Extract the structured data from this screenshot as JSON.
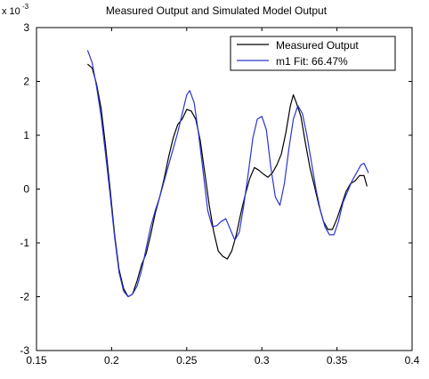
{
  "chart_data": {
    "type": "line",
    "title": "Measured Output and Simulated Model Output",
    "y_exponent_label": {
      "base": "x 10",
      "exponent": "-3"
    },
    "xlim": [
      0.15,
      0.4
    ],
    "ylim": [
      -3,
      3
    ],
    "x_ticks": [
      {
        "value": 0.15,
        "label": "0.15"
      },
      {
        "value": 0.2,
        "label": "0.2"
      },
      {
        "value": 0.25,
        "label": "0.25"
      },
      {
        "value": 0.3,
        "label": "0.3"
      },
      {
        "value": 0.35,
        "label": "0.35"
      },
      {
        "value": 0.4,
        "label": "0.4"
      }
    ],
    "y_ticks": [
      {
        "value": -3,
        "label": "-3"
      },
      {
        "value": -2,
        "label": "-2"
      },
      {
        "value": -1,
        "label": "-1"
      },
      {
        "value": 0,
        "label": "0"
      },
      {
        "value": 1,
        "label": "1"
      },
      {
        "value": 2,
        "label": "2"
      },
      {
        "value": 3,
        "label": "3"
      }
    ],
    "legend_position": "top-right",
    "grid": false,
    "series": [
      {
        "name": "Measured Output",
        "color": "#000000",
        "points": [
          [
            0.184,
            2.32
          ],
          [
            0.187,
            2.25
          ],
          [
            0.19,
            1.95
          ],
          [
            0.193,
            1.5
          ],
          [
            0.196,
            0.8
          ],
          [
            0.199,
            0.0
          ],
          [
            0.202,
            -0.85
          ],
          [
            0.205,
            -1.5
          ],
          [
            0.208,
            -1.85
          ],
          [
            0.211,
            -2.0
          ],
          [
            0.214,
            -1.95
          ],
          [
            0.217,
            -1.7
          ],
          [
            0.22,
            -1.4
          ],
          [
            0.223,
            -1.2
          ],
          [
            0.226,
            -0.85
          ],
          [
            0.229,
            -0.45
          ],
          [
            0.232,
            -0.15
          ],
          [
            0.235,
            0.2
          ],
          [
            0.238,
            0.6
          ],
          [
            0.241,
            0.95
          ],
          [
            0.244,
            1.2
          ],
          [
            0.247,
            1.3
          ],
          [
            0.25,
            1.48
          ],
          [
            0.253,
            1.45
          ],
          [
            0.256,
            1.3
          ],
          [
            0.259,
            0.9
          ],
          [
            0.262,
            0.3
          ],
          [
            0.265,
            -0.3
          ],
          [
            0.268,
            -0.8
          ],
          [
            0.271,
            -1.15
          ],
          [
            0.274,
            -1.25
          ],
          [
            0.277,
            -1.3
          ],
          [
            0.28,
            -1.15
          ],
          [
            0.283,
            -0.85
          ],
          [
            0.286,
            -0.45
          ],
          [
            0.289,
            -0.1
          ],
          [
            0.292,
            0.2
          ],
          [
            0.295,
            0.4
          ],
          [
            0.298,
            0.35
          ],
          [
            0.301,
            0.28
          ],
          [
            0.304,
            0.22
          ],
          [
            0.307,
            0.3
          ],
          [
            0.31,
            0.45
          ],
          [
            0.313,
            0.65
          ],
          [
            0.316,
            1.05
          ],
          [
            0.319,
            1.55
          ],
          [
            0.321,
            1.75
          ],
          [
            0.323,
            1.6
          ],
          [
            0.326,
            1.35
          ],
          [
            0.329,
            0.85
          ],
          [
            0.332,
            0.4
          ],
          [
            0.335,
            0.05
          ],
          [
            0.338,
            -0.3
          ],
          [
            0.341,
            -0.6
          ],
          [
            0.344,
            -0.75
          ],
          [
            0.347,
            -0.75
          ],
          [
            0.35,
            -0.55
          ],
          [
            0.353,
            -0.3
          ],
          [
            0.356,
            -0.05
          ],
          [
            0.359,
            0.1
          ],
          [
            0.362,
            0.15
          ],
          [
            0.365,
            0.25
          ],
          [
            0.368,
            0.25
          ],
          [
            0.37,
            0.05
          ]
        ]
      },
      {
        "name": "m1 Fit: 66.47%",
        "color": "#2b35d0",
        "points": [
          [
            0.184,
            2.58
          ],
          [
            0.187,
            2.35
          ],
          [
            0.19,
            1.9
          ],
          [
            0.193,
            1.35
          ],
          [
            0.196,
            0.65
          ],
          [
            0.199,
            -0.1
          ],
          [
            0.202,
            -0.9
          ],
          [
            0.205,
            -1.55
          ],
          [
            0.208,
            -1.9
          ],
          [
            0.211,
            -2.0
          ],
          [
            0.214,
            -1.95
          ],
          [
            0.217,
            -1.8
          ],
          [
            0.22,
            -1.5
          ],
          [
            0.223,
            -1.1
          ],
          [
            0.226,
            -0.7
          ],
          [
            0.229,
            -0.4
          ],
          [
            0.232,
            -0.15
          ],
          [
            0.235,
            0.15
          ],
          [
            0.238,
            0.45
          ],
          [
            0.241,
            0.75
          ],
          [
            0.244,
            1.05
          ],
          [
            0.247,
            1.4
          ],
          [
            0.25,
            1.75
          ],
          [
            0.252,
            1.83
          ],
          [
            0.255,
            1.6
          ],
          [
            0.258,
            1.0
          ],
          [
            0.261,
            0.3
          ],
          [
            0.264,
            -0.4
          ],
          [
            0.267,
            -0.7
          ],
          [
            0.27,
            -0.68
          ],
          [
            0.273,
            -0.6
          ],
          [
            0.276,
            -0.55
          ],
          [
            0.279,
            -0.75
          ],
          [
            0.282,
            -0.95
          ],
          [
            0.285,
            -0.8
          ],
          [
            0.288,
            -0.3
          ],
          [
            0.291,
            0.3
          ],
          [
            0.294,
            0.95
          ],
          [
            0.297,
            1.3
          ],
          [
            0.3,
            1.35
          ],
          [
            0.303,
            1.1
          ],
          [
            0.306,
            0.4
          ],
          [
            0.309,
            -0.15
          ],
          [
            0.312,
            -0.3
          ],
          [
            0.315,
            0.1
          ],
          [
            0.318,
            0.75
          ],
          [
            0.321,
            1.3
          ],
          [
            0.324,
            1.55
          ],
          [
            0.327,
            1.4
          ],
          [
            0.33,
            1.0
          ],
          [
            0.333,
            0.5
          ],
          [
            0.336,
            0.0
          ],
          [
            0.339,
            -0.4
          ],
          [
            0.342,
            -0.7
          ],
          [
            0.345,
            -0.85
          ],
          [
            0.348,
            -0.85
          ],
          [
            0.351,
            -0.6
          ],
          [
            0.354,
            -0.25
          ],
          [
            0.357,
            -0.05
          ],
          [
            0.36,
            0.15
          ],
          [
            0.363,
            0.3
          ],
          [
            0.366,
            0.45
          ],
          [
            0.368,
            0.48
          ],
          [
            0.371,
            0.3
          ]
        ]
      }
    ]
  }
}
